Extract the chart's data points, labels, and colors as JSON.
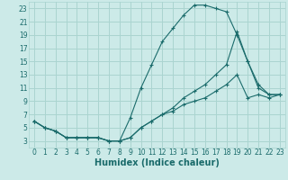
{
  "title": "",
  "xlabel": "Humidex (Indice chaleur)",
  "bg_color": "#cceae8",
  "grid_color": "#aad4d0",
  "line_color": "#1a6b6b",
  "xlim": [
    -0.5,
    23.5
  ],
  "ylim": [
    2,
    24
  ],
  "xticks": [
    0,
    1,
    2,
    3,
    4,
    5,
    6,
    7,
    8,
    9,
    10,
    11,
    12,
    13,
    14,
    15,
    16,
    17,
    18,
    19,
    20,
    21,
    22,
    23
  ],
  "yticks": [
    3,
    5,
    7,
    9,
    11,
    13,
    15,
    17,
    19,
    21,
    23
  ],
  "series1_x": [
    0,
    1,
    2,
    3,
    4,
    5,
    6,
    7,
    8,
    9,
    10,
    11,
    12,
    13,
    14,
    15,
    16,
    17,
    18,
    19,
    20,
    21,
    22,
    23
  ],
  "series1_y": [
    6,
    5,
    4.5,
    3.5,
    3.5,
    3.5,
    3.5,
    3,
    3,
    3.5,
    5,
    6,
    7,
    7.5,
    8.5,
    9,
    9.5,
    10.5,
    11.5,
    13,
    9.5,
    10,
    9.5,
    10
  ],
  "series2_x": [
    0,
    1,
    2,
    3,
    4,
    5,
    6,
    7,
    8,
    9,
    10,
    11,
    12,
    13,
    14,
    15,
    16,
    17,
    18,
    19,
    20,
    21,
    22,
    23
  ],
  "series2_y": [
    6,
    5,
    4.5,
    3.5,
    3.5,
    3.5,
    3.5,
    3,
    3,
    6.5,
    11,
    14.5,
    18,
    20,
    22,
    23.5,
    23.5,
    23,
    22.5,
    19,
    15,
    11,
    10,
    10
  ],
  "series3_x": [
    0,
    1,
    2,
    3,
    4,
    5,
    6,
    7,
    8,
    9,
    10,
    11,
    12,
    13,
    14,
    15,
    16,
    17,
    18,
    19,
    20,
    21,
    22,
    23
  ],
  "series3_y": [
    6,
    5,
    4.5,
    3.5,
    3.5,
    3.5,
    3.5,
    3,
    3,
    3.5,
    5,
    6,
    7,
    8,
    9.5,
    10.5,
    11.5,
    13,
    14.5,
    19.5,
    15,
    11.5,
    10,
    10
  ],
  "font_color": "#1a6b6b",
  "tick_fontsize": 5.5,
  "label_fontsize": 7.0
}
